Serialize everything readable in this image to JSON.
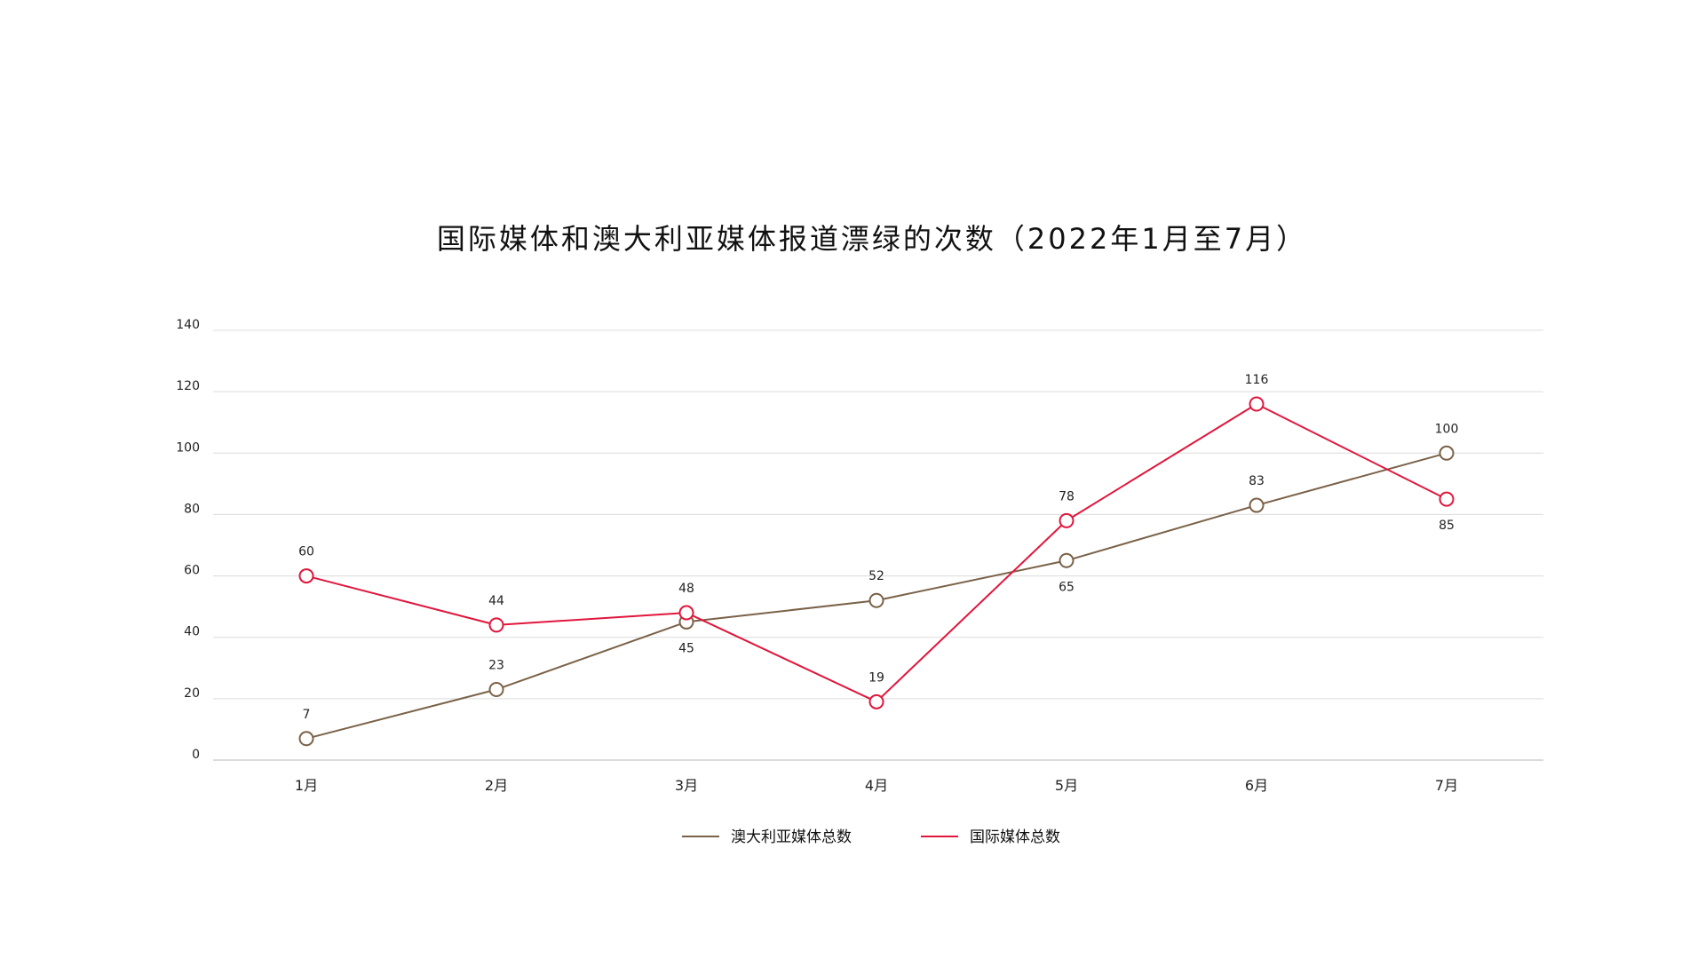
{
  "chart_data": {
    "type": "line",
    "title": "国际媒体和澳大利亚媒体报道漂绿的次数（2022年1月至7月）",
    "categories": [
      "1月",
      "2月",
      "3月",
      "4月",
      "5月",
      "6月",
      "7月"
    ],
    "ylim": [
      0,
      140
    ],
    "yticks": [
      0,
      20,
      40,
      60,
      80,
      100,
      120,
      140
    ],
    "grid": true,
    "legend_position": "bottom-center",
    "series": [
      {
        "name": "澳大利亚媒体总数",
        "color": "#7a6248",
        "values": [
          7,
          23,
          45,
          52,
          65,
          83,
          100
        ],
        "label_positions": [
          "above",
          "above",
          "below",
          "above",
          "below",
          "above",
          "above"
        ]
      },
      {
        "name": "国际媒体总数",
        "color": "#e0163c",
        "values": [
          60,
          44,
          48,
          19,
          78,
          116,
          85
        ],
        "label_positions": [
          "above",
          "above",
          "above",
          "above",
          "above",
          "above",
          "below"
        ]
      }
    ]
  }
}
